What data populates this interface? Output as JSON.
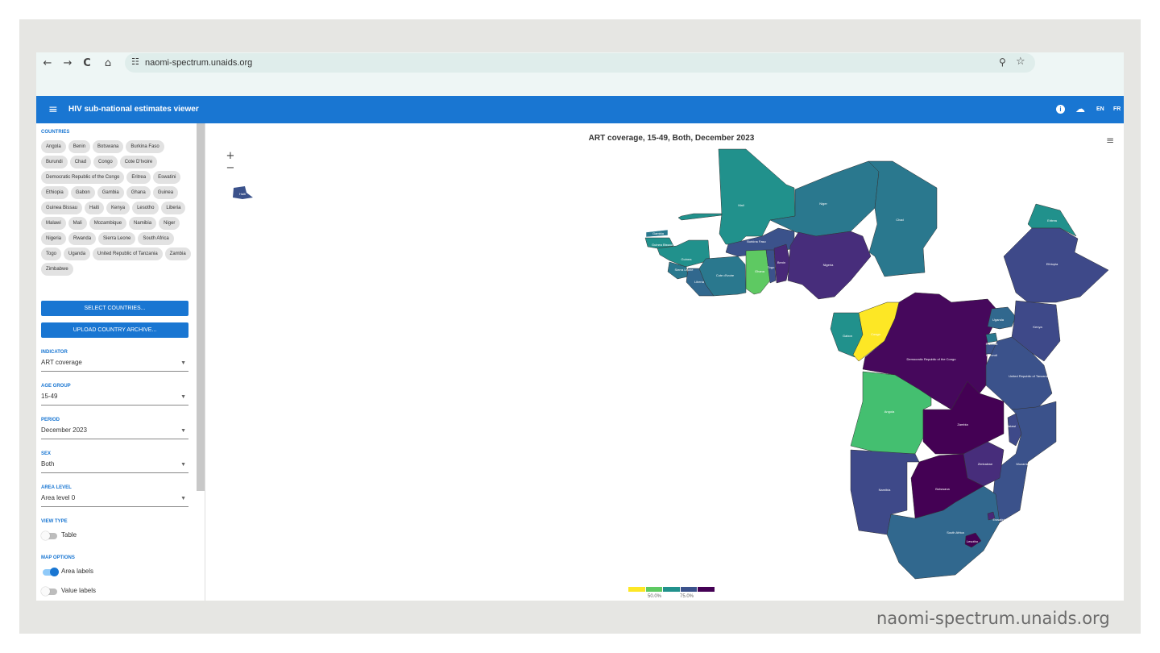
{
  "browser": {
    "url": "naomi-spectrum.unaids.org",
    "back_icon": "←",
    "forward_icon": "→",
    "reload_icon": "C",
    "home_icon": "⌂",
    "site_icon": "☷",
    "zoom_icon": "⚲",
    "star_icon": "☆"
  },
  "appbar": {
    "title": "HIV sub-national estimates viewer",
    "menu_icon": "≡",
    "download_icon": "☁",
    "info_icon": "i",
    "lang_en": "EN",
    "lang_fr": "FR",
    "color": "#1976d2"
  },
  "sidebar": {
    "countries_label": "COUNTRIES",
    "countries": [
      "Angola",
      "Benin",
      "Botswana",
      "Burkina Faso",
      "Burundi",
      "Chad",
      "Congo",
      "Cote D'Ivoire",
      "Democratic Republic of the Congo",
      "Eritrea",
      "Eswatini",
      "Ethiopia",
      "Gabon",
      "Gambia",
      "Ghana",
      "Guinea",
      "Guinea Bissau",
      "Haiti",
      "Kenya",
      "Lesotho",
      "Liberia",
      "Malawi",
      "Mali",
      "Mozambique",
      "Namibia",
      "Niger",
      "Nigeria",
      "Rwanda",
      "Sierra Leone",
      "South Africa",
      "Togo",
      "Uganda",
      "United Republic of Tanzania",
      "Zambia",
      "Zimbabwe"
    ],
    "select_countries_button": "SELECT COUNTRIES...",
    "upload_button": "UPLOAD COUNTRY ARCHIVE...",
    "indicator_label": "INDICATOR",
    "indicator_value": "ART coverage",
    "age_label": "AGE GROUP",
    "age_value": "15-49",
    "period_label": "PERIOD",
    "period_value": "December 2023",
    "sex_label": "SEX",
    "sex_value": "Both",
    "area_label": "AREA LEVEL",
    "area_value": "Area level 0",
    "view_type_label": "VIEW TYPE",
    "table_toggle": "Table",
    "table_on": false,
    "map_options_label": "MAP OPTIONS",
    "area_labels_toggle": "Area labels",
    "area_labels_on": true,
    "value_labels_toggle": "Value labels",
    "value_labels_on": false
  },
  "map": {
    "title": "ART coverage, 15-49, Both, December 2023",
    "zoom_in": "+",
    "zoom_out": "−",
    "menu_icon": "≡",
    "legend_ticks": [
      "50.0%",
      "75.0%"
    ],
    "legend_colors": [
      "#fde725",
      "#5ec962",
      "#21918c",
      "#3b528b",
      "#440154"
    ],
    "country_labels": {
      "mali": "Mali",
      "niger": "Niger",
      "chad": "Chad",
      "gambia": "Gambia",
      "guinea_bissau": "Guinea Bissau",
      "guinea": "Guinea",
      "sierra_leone": "Sierra Leone",
      "liberia": "Liberia",
      "cote": "Cote d'Ivoire",
      "burkina": "Burkina Faso",
      "ghana": "Ghana",
      "togo": "Togo",
      "benin": "Benin",
      "nigeria": "Nigeria",
      "eritrea": "Eritrea",
      "ethiopia": "Ethiopia",
      "gabon": "Gabon",
      "congo": "Congo",
      "drc": "Democratic Republic of the Congo",
      "uganda": "Uganda",
      "kenya": "Kenya",
      "rwanda": "Rwanda",
      "burundi": "Burundi",
      "tanzania": "United Republic of Tanzania",
      "angola": "Angola",
      "zambia": "Zambia",
      "malawi": "Malawi",
      "mozambique": "Mozambique",
      "zimbabwe": "Zimbabwe",
      "namibia": "Namibia",
      "botswana": "Botswana",
      "south_africa": "South Africa",
      "eswatini": "Eswatini",
      "lesotho": "Lesotho",
      "haiti": "Haiti"
    }
  },
  "watermark": "naomi-spectrum.unaids.org"
}
